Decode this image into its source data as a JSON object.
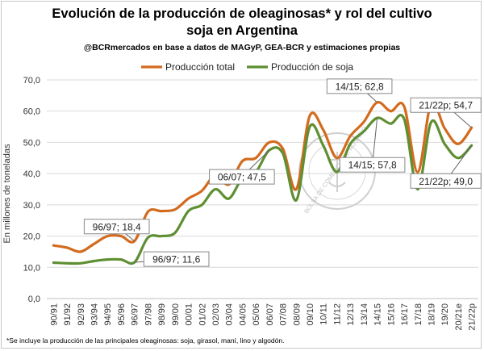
{
  "header": {
    "title_line1": "Evolución de la producción de oleaginosas* y rol del cultivo",
    "title_line2": "soja en Argentina",
    "subtitle": "@BCRmercados en base a datos de MAGyP, GEA-BCR y estimaciones propias"
  },
  "footnote": "*Se incluye la producción de las principales oleaginosas: soja, girasol, maní, lino y algodón.",
  "watermark": "BOLSA DE COMERCIO DE ROSARIO",
  "colors": {
    "total": "#d36b1f",
    "soja": "#5e8f32",
    "grid": "#d9d9d9"
  },
  "chart_data": {
    "type": "line",
    "x": [
      "90/91",
      "91/92",
      "92/93",
      "93/94",
      "94/95",
      "95/96",
      "96/97",
      "97/98",
      "98/99",
      "99/00",
      "00/01",
      "01/02",
      "02/03",
      "03/04",
      "04/05",
      "05/06",
      "06/07",
      "07/08",
      "08/09",
      "09/10",
      "10/11",
      "11/12",
      "12/13",
      "13/14",
      "14/15",
      "15/16",
      "16/17",
      "17/18",
      "18/19",
      "19/20",
      "20/21e",
      "21/22p"
    ],
    "series": [
      {
        "name": "Producción total",
        "color": "#d36b1f",
        "values": [
          17.0,
          16.3,
          15.0,
          17.5,
          20.0,
          20.0,
          18.4,
          27.8,
          28.0,
          28.5,
          32.0,
          34.5,
          39.5,
          36.5,
          44.0,
          45.0,
          50.0,
          48.0,
          35.0,
          58.5,
          54.0,
          45.0,
          52.0,
          56.5,
          62.8,
          60.0,
          61.5,
          40.5,
          62.5,
          54.5,
          49.5,
          54.7
        ]
      },
      {
        "name": "Producción de soja",
        "color": "#5e8f32",
        "values": [
          11.5,
          11.3,
          11.3,
          12.0,
          12.5,
          12.5,
          11.6,
          19.5,
          20.0,
          21.0,
          28.0,
          30.0,
          35.0,
          32.0,
          38.5,
          40.5,
          47.5,
          46.5,
          31.5,
          55.0,
          49.0,
          40.5,
          49.5,
          53.5,
          57.8,
          56.0,
          57.5,
          35.0,
          56.5,
          49.5,
          45.0,
          49.0
        ]
      }
    ],
    "yaxis": {
      "min": 0,
      "max": 70,
      "step": 10,
      "ticks": [
        "0,0",
        "10,0",
        "20,0",
        "30,0",
        "40,0",
        "50,0",
        "60,0",
        "70,0"
      ]
    },
    "ylabel": "En millones de toneladas",
    "annotations": [
      {
        "text": "96/97; 18,4",
        "series": 0,
        "index": 6
      },
      {
        "text": "96/97; 11,6",
        "series": 1,
        "index": 6
      },
      {
        "text": "06/07; 47,5",
        "series": 1,
        "index": 16
      },
      {
        "text": "14/15; 62,8",
        "series": 0,
        "index": 24
      },
      {
        "text": "14/15; 57,8",
        "series": 1,
        "index": 24
      },
      {
        "text": "21/22p; 54,7",
        "series": 0,
        "index": 31
      },
      {
        "text": "21/22p; 49,0",
        "series": 1,
        "index": 31
      }
    ],
    "legend": "top"
  }
}
